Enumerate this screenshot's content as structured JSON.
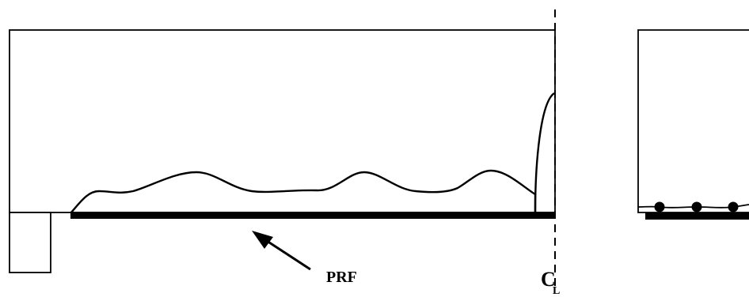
{
  "labels": {
    "prf": "PRF",
    "centerline": "C",
    "centerline_sub": "L"
  },
  "colors": {
    "ink": "#000000",
    "background": "#ffffff"
  }
}
